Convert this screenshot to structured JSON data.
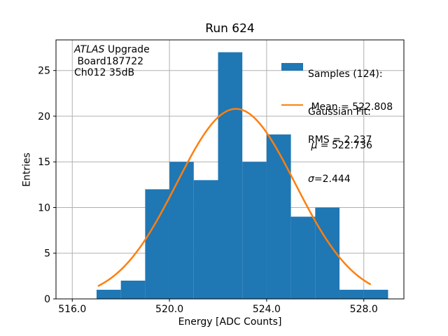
{
  "chart_data": {
    "type": "bar",
    "subtype": "histogram_with_gaussian_fit",
    "title": "Run 624",
    "xlabel": "Energy [ADC Counts]",
    "ylabel": "Entries",
    "bin_edges": [
      517,
      518,
      519,
      520,
      521,
      522,
      523,
      524,
      525,
      526,
      527,
      528,
      529
    ],
    "counts": [
      1,
      2,
      12,
      15,
      13,
      27,
      15,
      18,
      9,
      10,
      1,
      1
    ],
    "total_samples": 124,
    "mean": 522.808,
    "rms": 2.237,
    "fit": {
      "type": "gaussian",
      "mu": 522.736,
      "sigma": 2.444,
      "amplitude": 20.8,
      "x_start": 517.08,
      "x_end": 528.26
    },
    "xlim": [
      515.33,
      529.65
    ],
    "ylim": [
      0,
      28.35
    ],
    "xticks": [
      516,
      520,
      524,
      528
    ],
    "xtick_labels": [
      "516.0",
      "520.0",
      "524.0",
      "528.0"
    ],
    "yticks": [
      0,
      5,
      10,
      15,
      20,
      25
    ],
    "ytick_labels": [
      "0",
      "5",
      "10",
      "15",
      "20",
      "25"
    ],
    "grid": true,
    "legend_position": "upper right",
    "colors": {
      "bars": "#1f77b4",
      "fit_line": "#ff7f0e",
      "grid": "#b0b0b0",
      "spine": "#000000",
      "text": "#000000",
      "background": "#ffffff"
    }
  },
  "annotation": {
    "line1_italic": "ATLAS",
    "line1_rest": " Upgrade",
    "line2": " Board187722",
    "line3": "Ch012 35dB"
  },
  "legend": {
    "samples": {
      "line1": "Samples (124):",
      "line2": " Mean = 522.808",
      "line3": "RMS = 2.237"
    },
    "fit": {
      "line1": "Gaussian Fit:",
      "line2_symbol": " μ",
      "line2_rest": " = 522.736",
      "line3_symbol": "σ",
      "line3_rest": "=2.444"
    }
  }
}
